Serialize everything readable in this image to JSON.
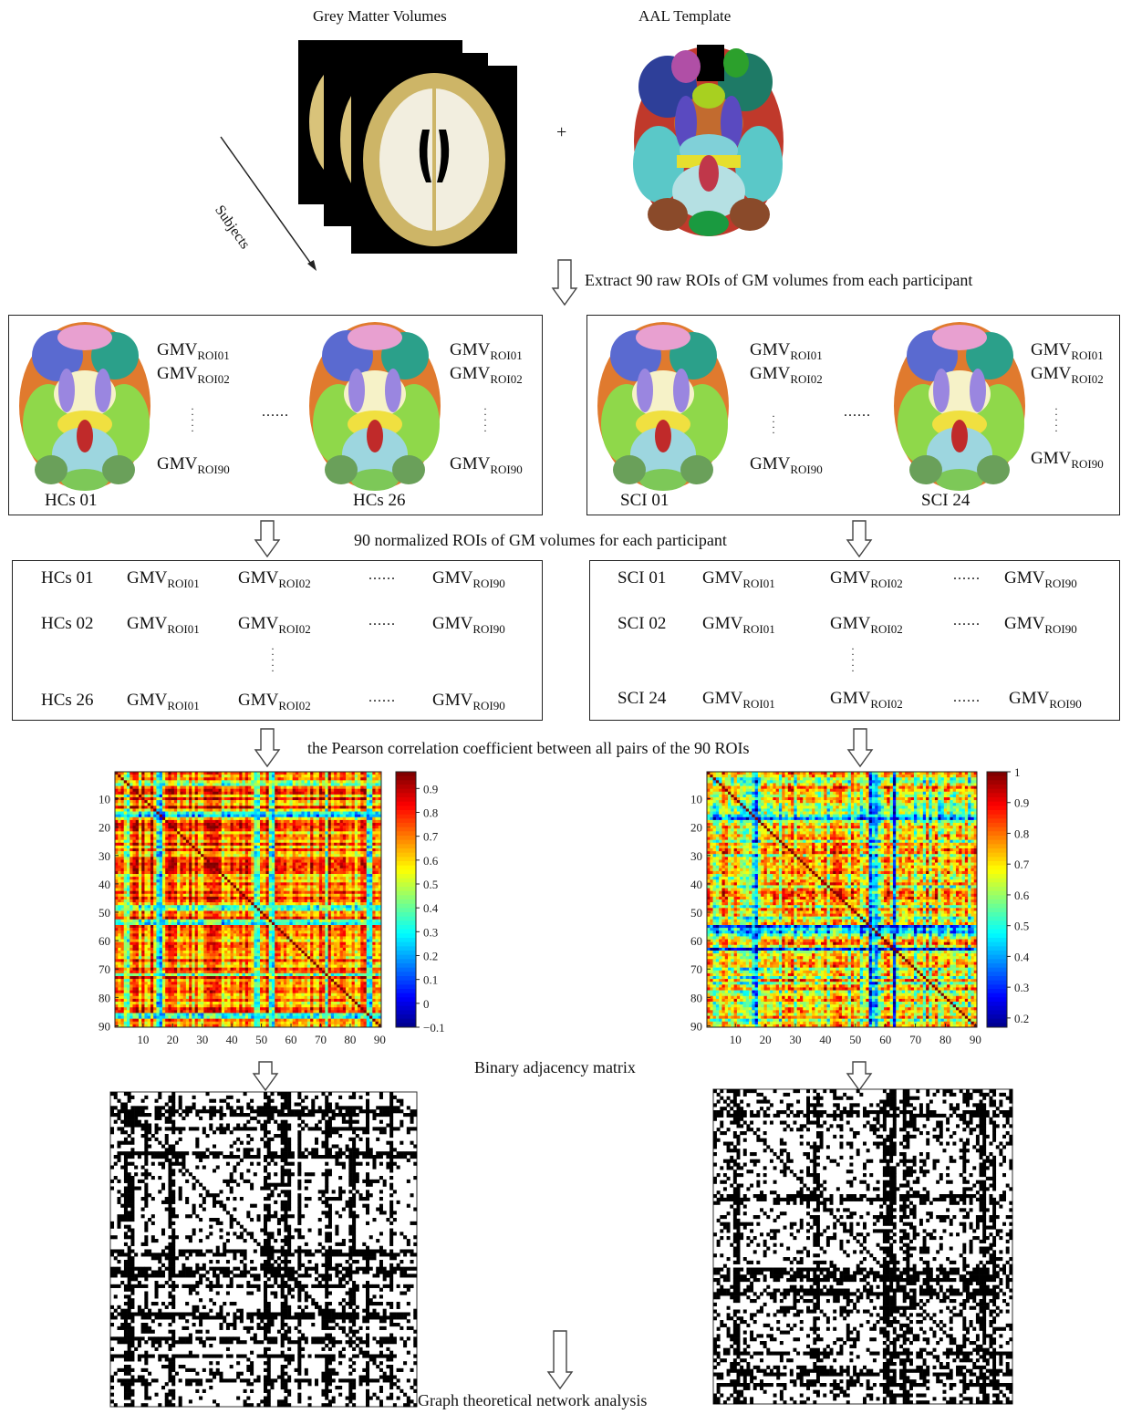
{
  "top": {
    "gm_title": "Grey Matter Volumes",
    "aal_title": "AAL Template",
    "plus": "+",
    "subjects": "Subjects",
    "extract_step": "Extract 90 raw ROIs of GM volumes from each participant"
  },
  "hc_raw": {
    "first": "HCs 01",
    "last": "HCs 26",
    "gmv": "GMV",
    "r1": "ROI01",
    "r2": "ROI02",
    "r90": "ROI90",
    "ellipsis": "......"
  },
  "sci_raw": {
    "first": "SCI 01",
    "last": "SCI 24",
    "gmv": "GMV",
    "r1": "ROI01",
    "r2": "ROI02",
    "r90": "ROI90",
    "ellipsis": "......"
  },
  "norm_step": "90 normalized ROIs of GM volumes for each participant",
  "hc_table": {
    "rows": [
      "HCs 01",
      "HCs 02",
      "HCs 26"
    ],
    "gmv": "GMV",
    "r1": "ROI01",
    "r2": "ROI02",
    "r90": "ROI90",
    "ellipsis": "......"
  },
  "sci_table": {
    "rows": [
      "SCI 01",
      "SCI 02",
      "SCI 24"
    ],
    "gmv": "GMV",
    "r1": "ROI01",
    "r2": "ROI02",
    "r90": "ROI90",
    "ellipsis": "......"
  },
  "corr_step": "the Pearson correlation coefficient between all pairs of the 90 ROIs",
  "binary_step": "Binary adjacency matrix",
  "final_step": "Graph theoretical network analysis",
  "chart_data": [
    {
      "type": "heatmap",
      "group": "HCs",
      "x_ticks": [
        "10",
        "20",
        "30",
        "40",
        "50",
        "60",
        "70",
        "80",
        "90"
      ],
      "y_ticks": [
        "10",
        "20",
        "30",
        "40",
        "50",
        "60",
        "70",
        "80",
        "90"
      ],
      "colorbar_ticks": [
        "0.9",
        "0.8",
        "0.7",
        "0.6",
        "0.5",
        "0.4",
        "0.3",
        "0.2",
        "0.1",
        "0",
        "−0.1"
      ],
      "colorbar_range": [
        -0.1,
        0.97
      ]
    },
    {
      "type": "heatmap",
      "group": "SCI",
      "x_ticks": [
        "10",
        "20",
        "30",
        "40",
        "50",
        "60",
        "70",
        "80",
        "90"
      ],
      "y_ticks": [
        "10",
        "20",
        "30",
        "40",
        "50",
        "60",
        "70",
        "80",
        "90"
      ],
      "colorbar_ticks": [
        "1",
        "0.9",
        "0.8",
        "0.7",
        "0.6",
        "0.5",
        "0.4",
        "0.3",
        "0.2"
      ],
      "colorbar_range": [
        0.17,
        1
      ]
    }
  ],
  "colors": {
    "arrow": "#444444",
    "border": "#222222"
  }
}
